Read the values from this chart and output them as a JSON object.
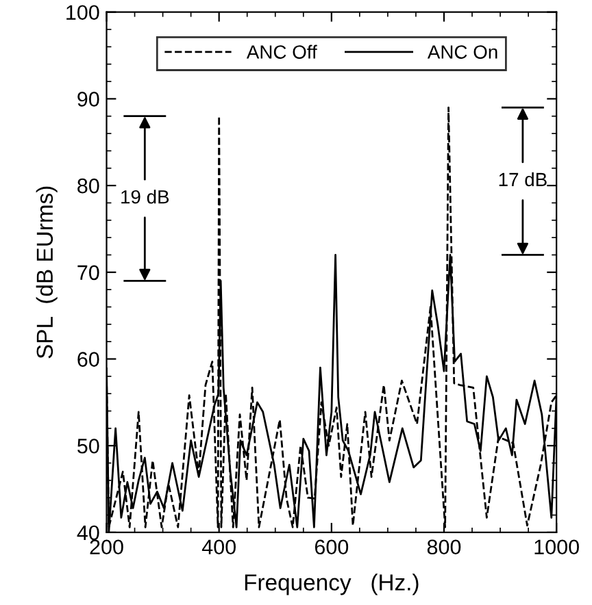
{
  "chart_data": {
    "type": "line",
    "xlabel": "Frequency   (Hz.)",
    "ylabel": "SPL  (dB EUrms)",
    "xlim": [
      200,
      1000
    ],
    "ylim": [
      40,
      100
    ],
    "xticks": [
      200,
      400,
      600,
      800,
      1000
    ],
    "yticks": [
      40,
      50,
      60,
      70,
      80,
      90,
      100
    ],
    "grid": false,
    "legend": "top",
    "marker": "none",
    "series": [
      {
        "name": "ANC Off",
        "color": "#000000",
        "line_style": "dashed",
        "x": [
          200,
          204,
          229,
          241,
          257,
          269,
          282,
          298,
          310,
          327,
          347,
          364,
          376,
          388,
          398,
          400,
          404,
          412,
          425,
          437,
          449,
          459,
          471,
          494,
          508,
          520,
          531,
          545,
          558,
          570,
          582,
          595,
          609,
          617,
          628,
          638,
          660,
          671,
          693,
          703,
          725,
          752,
          776,
          802,
          808,
          818,
          828,
          852,
          876,
          897,
          923,
          948,
          972,
          991,
          1000
        ],
        "values": [
          58,
          40.6,
          47,
          40.6,
          53.9,
          40.6,
          48.3,
          40.6,
          45.6,
          40.6,
          55.8,
          46.7,
          57,
          59.7,
          40.6,
          88,
          40.6,
          56,
          40.6,
          53.6,
          46,
          56.7,
          40.6,
          48.3,
          53,
          43.9,
          40.6,
          50,
          44,
          43.9,
          55,
          50,
          54.4,
          46.4,
          52.5,
          40.8,
          53.9,
          46.4,
          57,
          50.6,
          57.5,
          52.5,
          66,
          40.6,
          89,
          57.2,
          57,
          56.7,
          41.7,
          51,
          50.3,
          40.8,
          47.8,
          55,
          55.8
        ]
      },
      {
        "name": "ANC On",
        "color": "#000000",
        "line_style": "solid",
        "x": [
          200,
          204,
          216,
          226,
          237,
          247,
          257,
          268,
          278,
          290,
          302,
          317,
          335,
          350,
          364,
          392,
          399,
          403,
          408,
          420,
          431,
          438,
          449,
          468,
          478,
          498,
          509,
          525,
          539,
          550,
          560,
          569,
          580,
          591,
          600,
          607,
          612,
          620,
          630,
          652,
          669,
          677,
          703,
          726,
          746,
          759,
          779,
          789,
          800,
          811,
          819,
          830,
          841,
          854,
          865,
          876,
          887,
          897,
          910,
          921,
          929,
          944,
          961,
          974,
          983,
          991,
          1000
        ],
        "values": [
          58.9,
          40,
          52,
          41.7,
          45.8,
          42.8,
          46,
          48.6,
          43.3,
          44.7,
          42.8,
          48,
          42.5,
          50.6,
          46.4,
          54.7,
          56,
          69,
          56.7,
          47,
          40.6,
          50.6,
          48.9,
          55,
          53.9,
          47.8,
          42.8,
          47.8,
          40.6,
          50.8,
          49.4,
          40.6,
          59,
          48.9,
          53.9,
          72,
          55.6,
          50.6,
          49.4,
          44.4,
          49,
          53.9,
          45.8,
          52,
          47.5,
          48.3,
          67.9,
          63.9,
          58.6,
          72,
          59.7,
          60.6,
          52.8,
          52.5,
          49.4,
          58,
          55.6,
          50.6,
          52,
          48.9,
          55.3,
          52.5,
          57.5,
          53.6,
          47.2,
          41.7,
          55.8
        ]
      }
    ],
    "annotations": [
      "19 dB",
      "17 dB"
    ]
  }
}
